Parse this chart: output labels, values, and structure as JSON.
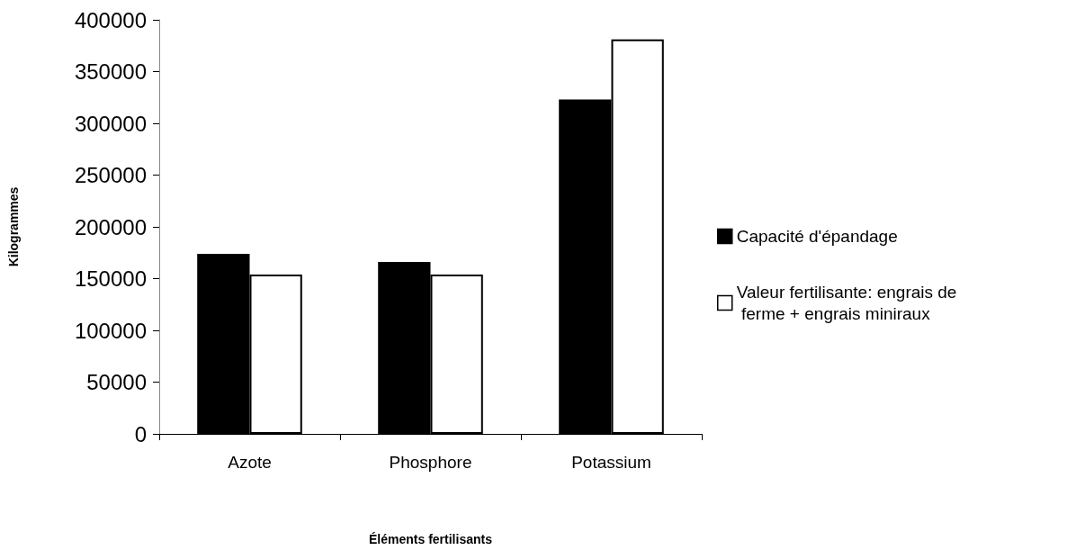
{
  "chart_data": {
    "type": "bar",
    "xlabel": "Éléments fertilisants",
    "ylabel": "Kilogrammes",
    "categories": [
      "Azote",
      "Phosphore",
      "Potassium"
    ],
    "series": [
      {
        "name": "Capacité d'épandage",
        "color": "#000000",
        "values": [
          174000,
          166000,
          323000
        ]
      },
      {
        "name": "Valeur fertilisante: engrais de ferme + engrais miniraux",
        "color": "#ffffff",
        "values": [
          154000,
          154000,
          381000
        ]
      }
    ],
    "ylim": [
      0,
      400000
    ],
    "yticks": [
      0,
      50000,
      100000,
      150000,
      200000,
      250000,
      300000,
      350000,
      400000
    ],
    "grid": false,
    "legend": "right"
  }
}
